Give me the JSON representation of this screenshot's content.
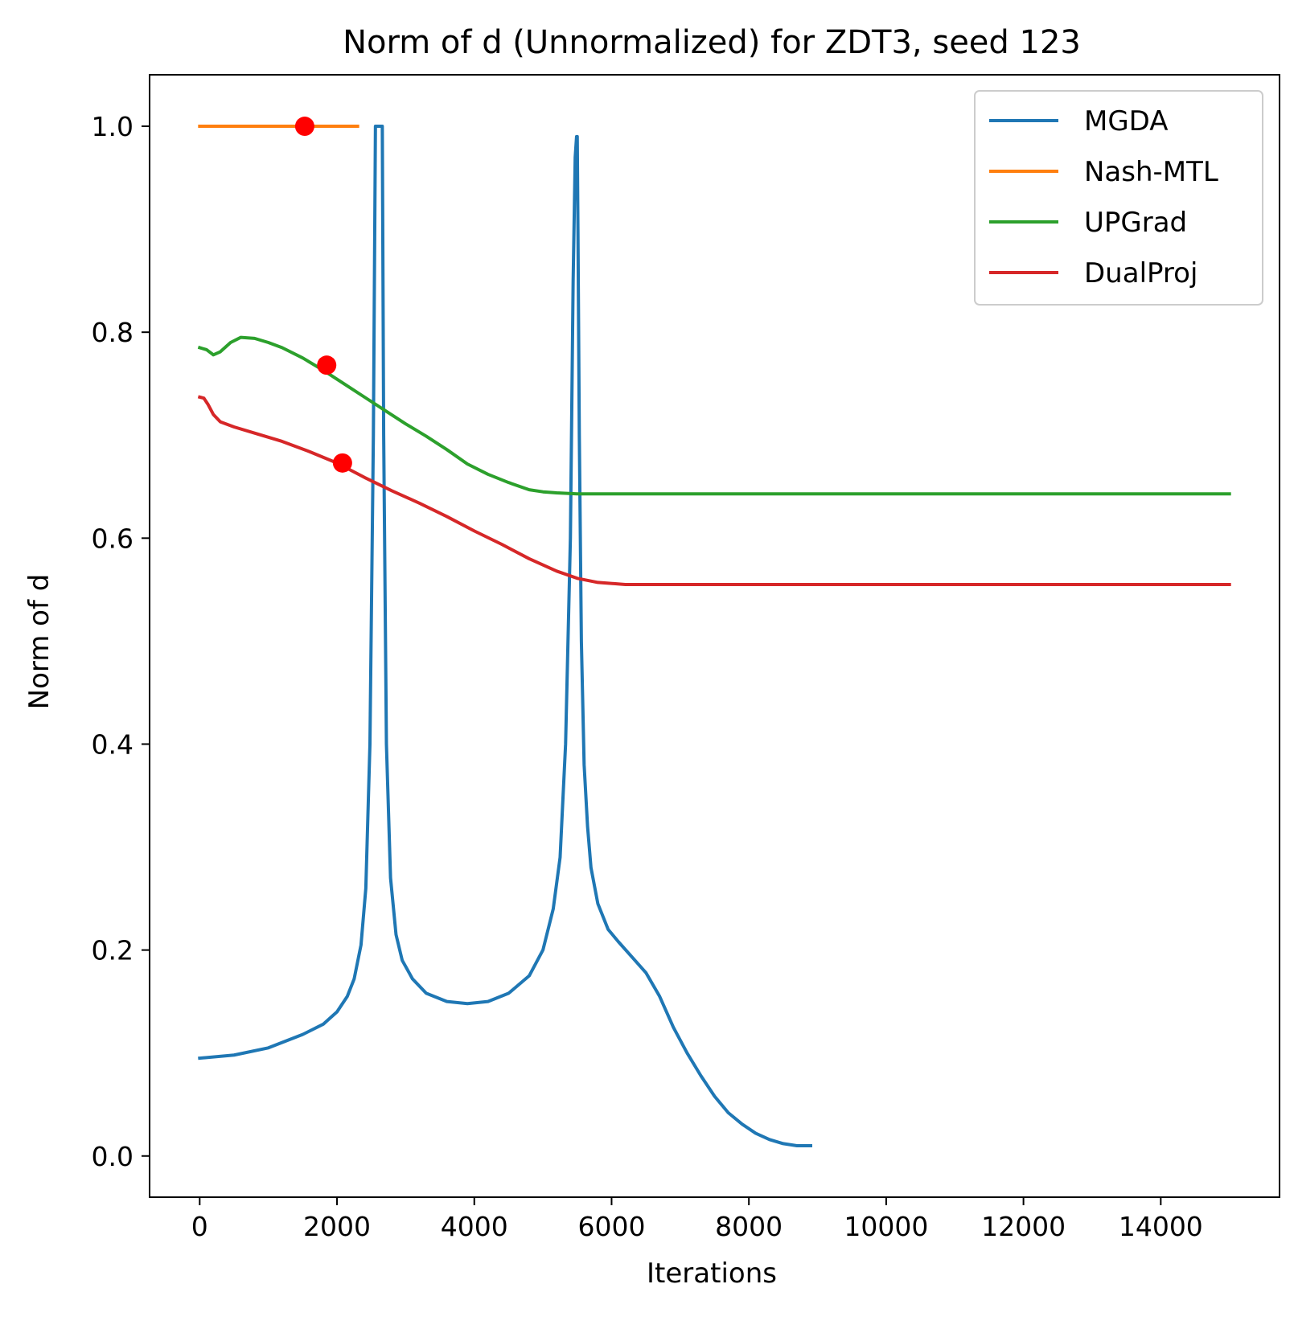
{
  "chart_data": {
    "type": "line",
    "title": "Norm of d (Unnormalized) for ZDT3, seed 123",
    "xlabel": "Iterations",
    "ylabel": "Norm of d",
    "xlim": [
      -730,
      15730
    ],
    "ylim": [
      -0.04,
      1.05
    ],
    "xticks": [
      0,
      2000,
      4000,
      6000,
      8000,
      10000,
      12000,
      14000
    ],
    "xtick_labels": [
      "0",
      "2000",
      "4000",
      "6000",
      "8000",
      "10000",
      "12000",
      "14000"
    ],
    "yticks": [
      0.0,
      0.2,
      0.4,
      0.6,
      0.8,
      1.0
    ],
    "ytick_labels": [
      "0.0",
      "0.2",
      "0.4",
      "0.6",
      "0.8",
      "1.0"
    ],
    "grid": false,
    "legend_position": "top-right",
    "series": [
      {
        "name": "MGDA",
        "color": "#1f77b4",
        "x": [
          0,
          500,
          1000,
          1500,
          1800,
          2000,
          2150,
          2250,
          2350,
          2420,
          2480,
          2530,
          2560,
          2580,
          2600,
          2620,
          2640,
          2660,
          2680,
          2720,
          2780,
          2860,
          2950,
          3100,
          3300,
          3600,
          3900,
          4200,
          4500,
          4800,
          5000,
          5150,
          5250,
          5330,
          5400,
          5440,
          5470,
          5490,
          5500,
          5510,
          5530,
          5560,
          5600,
          5650,
          5700,
          5800,
          5950,
          6100,
          6300,
          6500,
          6700,
          6900,
          7100,
          7300,
          7500,
          7700,
          7900,
          8100,
          8300,
          8500,
          8700,
          8900
        ],
        "y": [
          0.095,
          0.098,
          0.105,
          0.118,
          0.128,
          0.14,
          0.155,
          0.172,
          0.205,
          0.26,
          0.4,
          0.7,
          1.0,
          1.0,
          1.0,
          1.0,
          1.0,
          1.0,
          0.7,
          0.4,
          0.27,
          0.215,
          0.19,
          0.172,
          0.158,
          0.15,
          0.148,
          0.15,
          0.158,
          0.175,
          0.2,
          0.24,
          0.29,
          0.4,
          0.6,
          0.85,
          0.97,
          0.99,
          0.99,
          0.9,
          0.7,
          0.5,
          0.38,
          0.32,
          0.28,
          0.245,
          0.22,
          0.208,
          0.193,
          0.178,
          0.155,
          0.125,
          0.1,
          0.078,
          0.058,
          0.042,
          0.031,
          0.022,
          0.016,
          0.012,
          0.01,
          0.01
        ]
      },
      {
        "name": "Nash-MTL",
        "color": "#ff7f0e",
        "x": [
          0,
          2300
        ],
        "y": [
          1.0,
          1.0
        ]
      },
      {
        "name": "UPGrad",
        "color": "#2ca02c",
        "x": [
          0,
          100,
          200,
          300,
          450,
          600,
          800,
          1000,
          1200,
          1500,
          1800,
          2100,
          2400,
          2700,
          3000,
          3300,
          3600,
          3900,
          4200,
          4500,
          4800,
          5000,
          5200,
          5500,
          6000,
          8000,
          10000,
          12000,
          14000,
          15000
        ],
        "y": [
          0.785,
          0.783,
          0.778,
          0.781,
          0.79,
          0.795,
          0.794,
          0.79,
          0.785,
          0.775,
          0.763,
          0.75,
          0.737,
          0.724,
          0.711,
          0.699,
          0.686,
          0.672,
          0.662,
          0.654,
          0.647,
          0.645,
          0.644,
          0.643,
          0.643,
          0.643,
          0.643,
          0.643,
          0.643,
          0.643
        ]
      },
      {
        "name": "DualProj",
        "color": "#d62728",
        "x": [
          0,
          60,
          120,
          200,
          300,
          500,
          800,
          1200,
          1600,
          2000,
          2400,
          2800,
          3200,
          3600,
          4000,
          4400,
          4800,
          5200,
          5500,
          5800,
          6200,
          6500,
          7000,
          8000,
          10000,
          12000,
          14000,
          15000
        ],
        "y": [
          0.737,
          0.736,
          0.73,
          0.72,
          0.713,
          0.708,
          0.702,
          0.694,
          0.684,
          0.673,
          0.659,
          0.646,
          0.634,
          0.621,
          0.607,
          0.594,
          0.58,
          0.568,
          0.561,
          0.557,
          0.555,
          0.555,
          0.555,
          0.555,
          0.555,
          0.555,
          0.555,
          0.555
        ]
      }
    ],
    "markers": [
      {
        "series": "Nash-MTL",
        "x": 1530,
        "y": 1.0,
        "color": "#ff0000"
      },
      {
        "series": "UPGrad",
        "x": 1850,
        "y": 0.768,
        "color": "#ff0000"
      },
      {
        "series": "DualProj",
        "x": 2080,
        "y": 0.673,
        "color": "#ff0000"
      }
    ]
  }
}
